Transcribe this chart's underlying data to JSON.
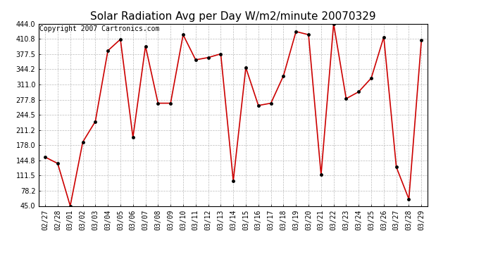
{
  "title": "Solar Radiation Avg per Day W/m2/minute 20070329",
  "copyright": "Copyright 2007 Cartronics.com",
  "dates": [
    "02/27",
    "02/28",
    "03/01",
    "03/02",
    "03/03",
    "03/04",
    "03/05",
    "03/06",
    "03/07",
    "03/08",
    "03/09",
    "03/10",
    "03/11",
    "03/12",
    "03/13",
    "03/14",
    "03/15",
    "03/16",
    "03/17",
    "03/18",
    "03/19",
    "03/20",
    "03/21",
    "03/22",
    "03/23",
    "03/24",
    "03/25",
    "03/26",
    "03/27",
    "03/28",
    "03/29"
  ],
  "values": [
    152,
    138,
    45,
    185,
    230,
    385,
    410,
    195,
    395,
    270,
    270,
    420,
    365,
    370,
    378,
    100,
    348,
    265,
    270,
    330,
    427,
    420,
    113,
    444,
    280,
    295,
    325,
    415,
    130,
    60,
    408
  ],
  "line_color": "#cc0000",
  "marker_color": "#000000",
  "bg_color": "#ffffff",
  "grid_color": "#bbbbbb",
  "ylim_min": 45.0,
  "ylim_max": 444.0,
  "yticks": [
    45.0,
    78.2,
    111.5,
    144.8,
    178.0,
    211.2,
    244.5,
    277.8,
    311.0,
    344.2,
    377.5,
    410.8,
    444.0
  ],
  "title_fontsize": 11,
  "copyright_fontsize": 7,
  "tick_fontsize": 7
}
